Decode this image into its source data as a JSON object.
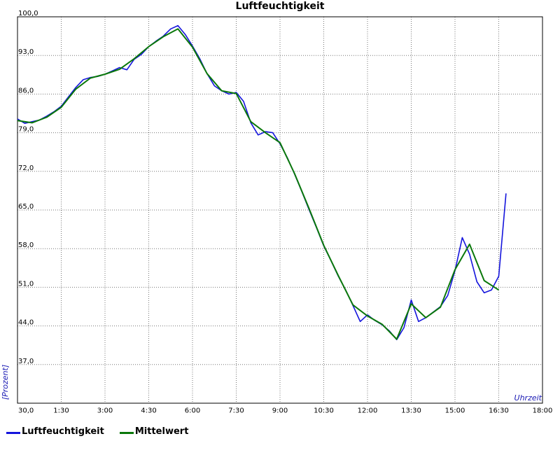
{
  "chart_data": {
    "type": "line",
    "title": "Luftfeuchtigkeit",
    "xlabel": "Uhrzeit",
    "ylabel": "[Prozent]",
    "x_tick_labels": [
      "30,0",
      "1:30",
      "3:00",
      "4:30",
      "6:00",
      "7:30",
      "9:00",
      "10:30",
      "12:00",
      "13:30",
      "15:00",
      "16:30",
      "18:00"
    ],
    "y_tick_labels": [
      "37,0",
      "44,0",
      "51,0",
      "58,0",
      "65,0",
      "72,0",
      "79,0",
      "86,0",
      "93,0",
      "100,0"
    ],
    "x_unit": "hours",
    "xlim": [
      0,
      18
    ],
    "ylim": [
      30,
      100
    ],
    "grid": true,
    "legend_position": "bottom-left",
    "series": [
      {
        "name": "Luftfeuchtigkeit",
        "color": "#1414dc",
        "x": [
          0.0,
          0.25,
          0.5,
          0.75,
          1.0,
          1.25,
          1.5,
          1.75,
          2.0,
          2.25,
          2.5,
          2.75,
          3.0,
          3.25,
          3.5,
          3.75,
          4.0,
          4.25,
          4.5,
          4.75,
          5.0,
          5.25,
          5.5,
          5.75,
          6.0,
          6.25,
          6.5,
          6.75,
          7.0,
          7.25,
          7.5,
          7.75,
          8.0,
          8.25,
          8.5,
          8.75,
          9.0,
          9.25,
          9.5,
          9.75,
          10.0,
          10.25,
          10.5,
          10.75,
          11.0,
          11.25,
          11.5,
          11.75,
          12.0,
          12.25,
          12.5,
          12.75,
          13.0,
          13.25,
          13.5,
          13.75,
          14.0,
          14.25,
          14.5,
          14.75,
          15.0,
          15.25,
          15.5,
          15.75,
          16.0,
          16.25,
          16.5,
          16.75
        ],
        "values": [
          81.5,
          80.7,
          81.0,
          81.3,
          82.0,
          82.8,
          83.8,
          85.5,
          87.2,
          88.6,
          89.0,
          89.2,
          89.6,
          90.2,
          90.8,
          90.4,
          92.3,
          93.2,
          94.6,
          95.6,
          96.5,
          97.8,
          98.4,
          96.8,
          94.7,
          92.4,
          89.7,
          87.5,
          86.6,
          86.0,
          86.3,
          84.7,
          80.8,
          78.6,
          79.2,
          79.0,
          77.0,
          74.5,
          71.5,
          68.3,
          65.0,
          61.8,
          58.5,
          55.8,
          53.0,
          50.5,
          47.7,
          44.8,
          46.0,
          45.0,
          44.2,
          43.1,
          41.5,
          43.7,
          48.7,
          44.8,
          45.5,
          46.5,
          47.5,
          49.5,
          54.0,
          60.0,
          57.0,
          52.0,
          50.0,
          50.5,
          53.0,
          68.0
        ]
      },
      {
        "name": "Mittelwert",
        "color": "#0a780a",
        "x": [
          0.0,
          0.5,
          1.0,
          1.5,
          2.0,
          2.5,
          3.0,
          3.5,
          4.0,
          4.5,
          5.0,
          5.5,
          6.0,
          6.5,
          7.0,
          7.5,
          8.0,
          8.5,
          9.0,
          9.5,
          10.0,
          10.5,
          11.0,
          11.5,
          12.0,
          12.5,
          13.0,
          13.5,
          14.0,
          14.5,
          15.0,
          15.5,
          16.0,
          16.5
        ],
        "values": [
          81.2,
          80.8,
          81.8,
          83.6,
          86.9,
          88.9,
          89.6,
          90.5,
          92.4,
          94.6,
          96.4,
          97.8,
          94.5,
          89.7,
          86.6,
          86.1,
          81.0,
          79.0,
          77.2,
          71.6,
          65.2,
          58.6,
          53.1,
          47.8,
          45.8,
          44.3,
          41.6,
          48.0,
          45.5,
          47.4,
          54.2,
          58.8,
          52.2,
          50.5
        ]
      }
    ]
  }
}
